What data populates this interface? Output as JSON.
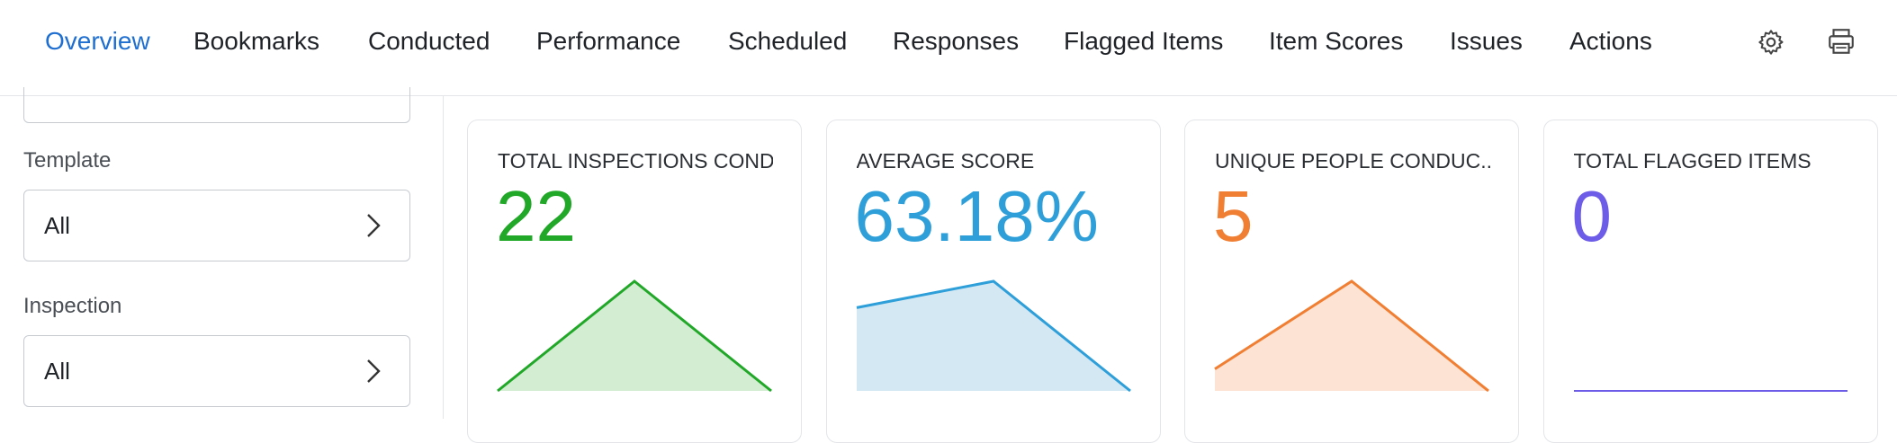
{
  "nav": {
    "tabs": [
      "Overview",
      "Bookmarks",
      "Conducted",
      "Performance",
      "Scheduled",
      "Responses",
      "Flagged Items",
      "Item Scores",
      "Issues",
      "Actions"
    ],
    "active": 0
  },
  "sidebar": {
    "filters": [
      {
        "label": "Template",
        "value": "All"
      },
      {
        "label": "Inspection",
        "value": "All"
      }
    ]
  },
  "cards": [
    {
      "title": "TOTAL INSPECTIONS CONDU",
      "value": "22",
      "color": "#22a829",
      "fill": "#d3edd2",
      "sparkline": [
        0,
        22,
        0
      ]
    },
    {
      "title": "AVERAGE SCORE",
      "value": "63.18%",
      "color": "#2e9fd9",
      "fill": "#d4e8f4",
      "sparkline": [
        60,
        79,
        0
      ]
    },
    {
      "title": "UNIQUE PEOPLE CONDUC...",
      "value": "5",
      "color": "#f07f33",
      "fill": "#fde3d4",
      "sparkline": [
        1,
        5,
        0
      ]
    },
    {
      "title": "TOTAL FLAGGED ITEMS",
      "value": "0",
      "color": "#6c5ce7",
      "fill": "#e6e3fb",
      "sparkline": [
        0,
        0,
        0
      ]
    }
  ]
}
